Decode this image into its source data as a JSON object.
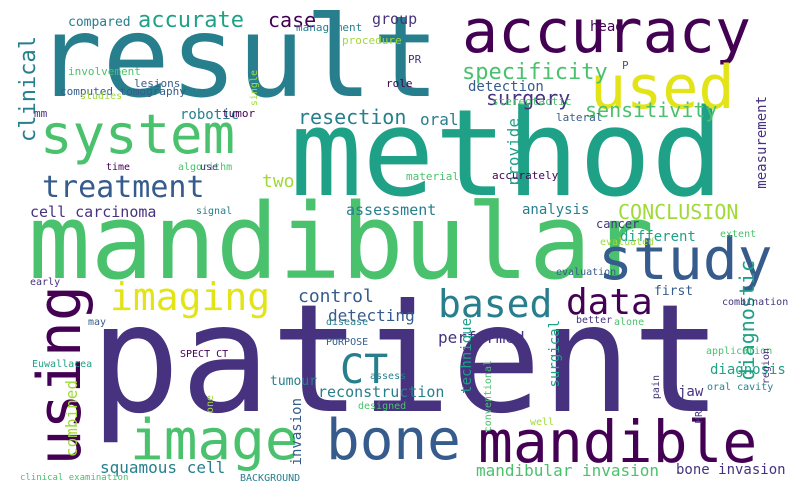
{
  "palette": {
    "dark_purple": "#440154",
    "indigo": "#46327e",
    "blue": "#365c8d",
    "steel": "#277f8e",
    "teal": "#1fa187",
    "green": "#4ac16d",
    "lime": "#a0da39",
    "yellow": "#e2e418"
  },
  "words": [
    {
      "text": "result",
      "color": "#277f8e"
    },
    {
      "text": "accuracy",
      "color": "#440154"
    },
    {
      "text": "method",
      "color": "#1fa187"
    },
    {
      "text": "system",
      "color": "#4ac16d"
    },
    {
      "text": "used",
      "color": "#e2e418"
    },
    {
      "text": "mandibular",
      "color": "#4ac16d"
    },
    {
      "text": "study",
      "color": "#365c8d"
    },
    {
      "text": "patient",
      "color": "#46327e"
    },
    {
      "text": "treatment",
      "color": "#365c8d"
    },
    {
      "text": "imaging",
      "color": "#e2e418"
    },
    {
      "text": "data",
      "color": "#440154"
    },
    {
      "text": "based",
      "color": "#277f8e"
    },
    {
      "text": "using",
      "color": "#440154"
    },
    {
      "text": "image",
      "color": "#4ac16d"
    },
    {
      "text": "bone",
      "color": "#365c8d"
    },
    {
      "text": "mandible",
      "color": "#440154"
    },
    {
      "text": "CT",
      "color": "#277f8e"
    },
    {
      "text": "clinical",
      "color": "#277f8e"
    },
    {
      "text": "specificity",
      "color": "#4ac16d"
    },
    {
      "text": "surgery",
      "color": "#46327e"
    },
    {
      "text": "sensitivity",
      "color": "#4ac16d"
    },
    {
      "text": "CONCLUSION",
      "color": "#a0da39"
    },
    {
      "text": "accurate",
      "color": "#1fa187"
    },
    {
      "text": "case",
      "color": "#440154"
    },
    {
      "text": "group",
      "color": "#46327e"
    },
    {
      "text": "compared",
      "color": "#277f8e"
    },
    {
      "text": "resection",
      "color": "#277f8e"
    },
    {
      "text": "oral",
      "color": "#277f8e"
    },
    {
      "text": "provide",
      "color": "#1fa187"
    },
    {
      "text": "two",
      "color": "#a0da39"
    },
    {
      "text": "assessment",
      "color": "#277f8e"
    },
    {
      "text": "analysis",
      "color": "#277f8e"
    },
    {
      "text": "cancer",
      "color": "#46327e"
    },
    {
      "text": "cell carcinoma",
      "color": "#46327e"
    },
    {
      "text": "control",
      "color": "#365c8d"
    },
    {
      "text": "performed",
      "color": "#46327e"
    },
    {
      "text": "detecting",
      "color": "#365c8d"
    },
    {
      "text": "first",
      "color": "#365c8d"
    },
    {
      "text": "diagnostic",
      "color": "#1fa187"
    },
    {
      "text": "measurement",
      "color": "#46327e"
    },
    {
      "text": "different",
      "color": "#1fa187"
    },
    {
      "text": "combined",
      "color": "#a0da39"
    },
    {
      "text": "squamous cell",
      "color": "#277f8e"
    },
    {
      "text": "invasion",
      "color": "#365c8d"
    },
    {
      "text": "reconstruction",
      "color": "#277f8e"
    },
    {
      "text": "mandibular invasion",
      "color": "#4ac16d"
    },
    {
      "text": "bone invasion",
      "color": "#46327e"
    },
    {
      "text": "surgical",
      "color": "#1fa187"
    },
    {
      "text": "technique",
      "color": "#1fa187"
    },
    {
      "text": "diagnosis",
      "color": "#1fa187"
    },
    {
      "text": "jaw",
      "color": "#46327e"
    },
    {
      "text": "robotic",
      "color": "#277f8e"
    },
    {
      "text": "tumor",
      "color": "#440154"
    },
    {
      "text": "detection",
      "color": "#365c8d"
    },
    {
      "text": "mm",
      "color": "#46327e"
    },
    {
      "text": "computed tomography",
      "color": "#365c8d"
    },
    {
      "text": "lesions",
      "color": "#365c8d"
    },
    {
      "text": "involvement",
      "color": "#4ac16d"
    },
    {
      "text": "studies",
      "color": "#a0da39"
    },
    {
      "text": "single",
      "color": "#a0da39"
    },
    {
      "text": "management",
      "color": "#277f8e"
    },
    {
      "text": "procedure",
      "color": "#a0da39"
    },
    {
      "text": "PR",
      "color": "#46327e"
    },
    {
      "text": "role",
      "color": "#440154"
    },
    {
      "text": "head",
      "color": "#440154"
    },
    {
      "text": "P",
      "color": "#365c8d"
    },
    {
      "text": "stereotactic",
      "color": "#4ac16d"
    },
    {
      "text": "lateral",
      "color": "#365c8d"
    },
    {
      "text": "time",
      "color": "#440154"
    },
    {
      "text": "algorithm",
      "color": "#4ac16d"
    },
    {
      "text": "use",
      "color": "#46327e"
    },
    {
      "text": "material",
      "color": "#4ac16d"
    },
    {
      "text": "accurately",
      "color": "#440154"
    },
    {
      "text": "signal",
      "color": "#277f8e"
    },
    {
      "text": "evaluated",
      "color": "#a0da39"
    },
    {
      "text": "extent",
      "color": "#4ac16d"
    },
    {
      "text": "early",
      "color": "#46327e"
    },
    {
      "text": "evaluation",
      "color": "#365c8d"
    },
    {
      "text": "may",
      "color": "#365c8d"
    },
    {
      "text": "disease",
      "color": "#277f8e"
    },
    {
      "text": "better",
      "color": "#46327e"
    },
    {
      "text": "alone",
      "color": "#4ac16d"
    },
    {
      "text": "combination",
      "color": "#46327e"
    },
    {
      "text": "SPECT CT",
      "color": "#440154"
    },
    {
      "text": "PURPOSE",
      "color": "#365c8d"
    },
    {
      "text": "conventional",
      "color": "#4ac16d"
    },
    {
      "text": "application",
      "color": "#4ac16d"
    },
    {
      "text": "pain",
      "color": "#46327e"
    },
    {
      "text": "MRI",
      "color": "#46327e"
    },
    {
      "text": "oral cavity",
      "color": "#277f8e"
    },
    {
      "text": "assess",
      "color": "#277f8e"
    },
    {
      "text": "Euwallacea",
      "color": "#1fa187"
    },
    {
      "text": "tumour",
      "color": "#277f8e"
    },
    {
      "text": "one",
      "color": "#a0da39"
    },
    {
      "text": "designed",
      "color": "#4ac16d"
    },
    {
      "text": "well",
      "color": "#a0da39"
    },
    {
      "text": "region",
      "color": "#46327e"
    },
    {
      "text": "clinical examination",
      "color": "#4ac16d"
    },
    {
      "text": "BACKGROUND",
      "color": "#277f8e"
    },
    {
      "text": "evaluate",
      "color": "#4ac16d"
    }
  ]
}
